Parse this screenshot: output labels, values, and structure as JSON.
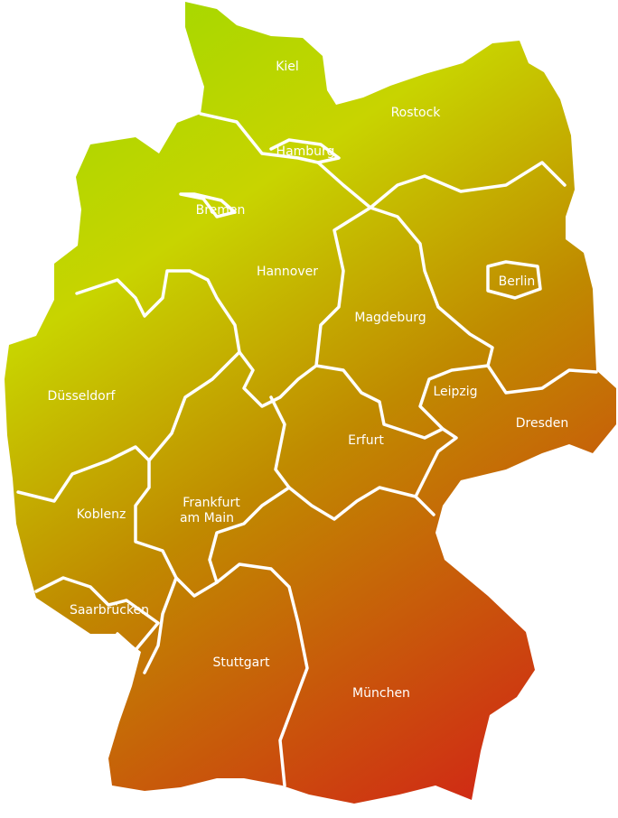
{
  "map": {
    "colors": {
      "north": "#a6d800",
      "center": "#c8b400",
      "south": "#d02c14",
      "borders": "#ffffff",
      "labels": "#ffffff"
    },
    "cities": [
      {
        "id": "kiel",
        "label": "Kiel"
      },
      {
        "id": "rostock",
        "label": "Rostock"
      },
      {
        "id": "hamburg",
        "label": "Hamburg"
      },
      {
        "id": "bremen",
        "label": "Bremen"
      },
      {
        "id": "hannover",
        "label": "Hannover"
      },
      {
        "id": "berlin",
        "label": "Berlin"
      },
      {
        "id": "magdeburg",
        "label": "Magdeburg"
      },
      {
        "id": "duesseldorf",
        "label": "Düsseldorf"
      },
      {
        "id": "leipzig",
        "label": "Leipzig"
      },
      {
        "id": "dresden",
        "label": "Dresden"
      },
      {
        "id": "erfurt",
        "label": "Erfurt"
      },
      {
        "id": "koblenz",
        "label": "Koblenz"
      },
      {
        "id": "frankfurt",
        "label": "Frankfurt",
        "label2": "am Main"
      },
      {
        "id": "saarbruecken",
        "label": "Saarbrücken"
      },
      {
        "id": "stuttgart",
        "label": "Stuttgart"
      },
      {
        "id": "muenchen",
        "label": "München"
      }
    ]
  }
}
